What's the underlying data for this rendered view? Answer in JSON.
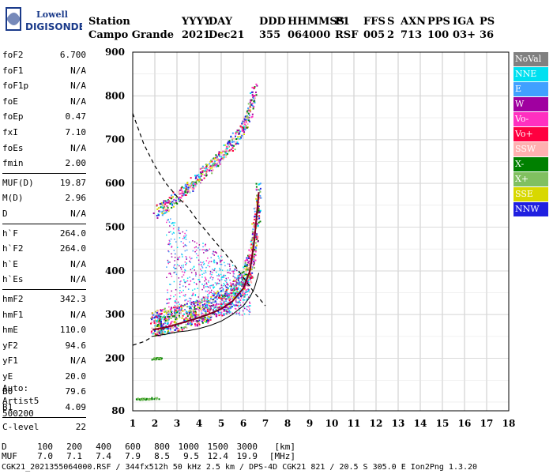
{
  "logo": {
    "line1": "Lowell",
    "line2": "DIGISONDE"
  },
  "header": {
    "columns": [
      {
        "label": "Station",
        "value": "Campo Grande",
        "w": 118
      },
      {
        "label": "YYYY",
        "value": "2021",
        "w": 34
      },
      {
        "label": "DAY",
        "value": "Dec21",
        "w": 64
      },
      {
        "label": "DDD",
        "value": "355",
        "w": 36
      },
      {
        "label": "HHMMSS",
        "value": "064000",
        "w": 60
      },
      {
        "label": "P1",
        "value": "RSF",
        "w": 36
      },
      {
        "label": "FFS",
        "value": "005",
        "w": 30
      },
      {
        "label": "S",
        "value": "2",
        "w": 17
      },
      {
        "label": "AXN",
        "value": "713",
        "w": 34
      },
      {
        "label": "PPS",
        "value": "100",
        "w": 32
      },
      {
        "label": "IGA",
        "value": "03+",
        "w": 34
      },
      {
        "label": "PS",
        "value": "36",
        "w": 24
      }
    ]
  },
  "params": [
    {
      "label": "foF2",
      "value": "6.700"
    },
    {
      "label": "foF1",
      "value": "N/A"
    },
    {
      "label": "foF1p",
      "value": "N/A"
    },
    {
      "label": "foE",
      "value": "N/A"
    },
    {
      "label": "foEp",
      "value": "0.47"
    },
    {
      "label": "fxI",
      "value": "7.10"
    },
    {
      "label": "foEs",
      "value": "N/A"
    },
    {
      "label": "fmin",
      "value": "2.00"
    },
    {
      "sep": true
    },
    {
      "label": "MUF(D)",
      "value": "19.87"
    },
    {
      "label": "M(D)",
      "value": "2.96"
    },
    {
      "label": "D",
      "value": "N/A"
    },
    {
      "sep": true
    },
    {
      "label": "h`F",
      "value": "264.0"
    },
    {
      "label": "h`F2",
      "value": "264.0"
    },
    {
      "label": "h`E",
      "value": "N/A"
    },
    {
      "label": "h`Es",
      "value": "N/A"
    },
    {
      "sep": true
    },
    {
      "label": "hmF2",
      "value": "342.3"
    },
    {
      "label": "hmF1",
      "value": "N/A"
    },
    {
      "label": "hmE",
      "value": "110.0"
    },
    {
      "label": "yF2",
      "value": "94.6"
    },
    {
      "label": "yF1",
      "value": "N/A"
    },
    {
      "label": "yE",
      "value": "20.0"
    },
    {
      "label": "B0",
      "value": "79.6"
    },
    {
      "label": "B1",
      "value": "4.09"
    },
    {
      "sep": true
    },
    {
      "label": "C-level",
      "value": "22"
    }
  ],
  "auto": [
    "Auto:",
    "Artist5",
    "500200"
  ],
  "legend": [
    {
      "label": "NoVal",
      "color": "#808080"
    },
    {
      "label": "NNE",
      "color": "#00e0f0"
    },
    {
      "label": "E",
      "color": "#40a0ff"
    },
    {
      "label": "W",
      "color": "#a000a0"
    },
    {
      "label": "Vo-",
      "color": "#ff30c0"
    },
    {
      "label": "Vo+",
      "color": "#ff0040"
    },
    {
      "label": "SSW",
      "color": "#ffb0b0"
    },
    {
      "label": "X-",
      "color": "#008000"
    },
    {
      "label": "X+",
      "color": "#80c060"
    },
    {
      "label": "SSE",
      "color": "#d8d800"
    },
    {
      "label": "NNW",
      "color": "#2020e0"
    }
  ],
  "bottom": {
    "d_label": "D",
    "d_values": [
      "100",
      "200",
      "400",
      "600",
      "800",
      "1000",
      "1500",
      "3000"
    ],
    "d_unit": "[km]",
    "muf_label": "MUF",
    "muf_values": [
      "7.0",
      "7.1",
      "7.4",
      "7.9",
      "8.5",
      "9.5",
      "12.4",
      "19.9"
    ],
    "muf_unit": "[MHz]",
    "footer": "CGK21_2021355064000.RSF / 344fx512h 50 kHz 2.5 km / DPS-4D CGK21 821 / 20.5 S 305.0 E Ion2Png 1.3.20"
  },
  "chart_data": {
    "type": "scatter",
    "xlim": [
      1,
      18
    ],
    "ylim": [
      80,
      900
    ],
    "xticks": [
      1,
      2,
      3,
      4,
      5,
      6,
      7,
      8,
      9,
      10,
      11,
      12,
      13,
      14,
      15,
      16,
      17,
      18
    ],
    "yticks": [
      80,
      200,
      300,
      400,
      500,
      600,
      700,
      800,
      900
    ],
    "grid": true,
    "legend_position": "right",
    "traces": [
      {
        "name": "F-trace",
        "x": [
          1.9,
          2.2,
          2.6,
          3.0,
          3.5,
          4.0,
          4.5,
          5.0,
          5.5,
          6.0,
          6.3,
          6.5,
          6.7
        ],
        "y": [
          265,
          268,
          272,
          278,
          285,
          293,
          302,
          313,
          330,
          360,
          400,
          470,
          580
        ]
      },
      {
        "name": "F-trace-2hop",
        "x": [
          2.0,
          2.5,
          3.0,
          3.5,
          4.0,
          4.5,
          5.0,
          5.5,
          6.0,
          6.3,
          6.5
        ],
        "y": [
          535,
          550,
          570,
          590,
          615,
          640,
          665,
          695,
          730,
          770,
          820
        ]
      },
      {
        "name": "Es-like",
        "x": [
          1.9,
          2.0,
          2.1,
          2.2
        ],
        "y": [
          200,
          201,
          200,
          202
        ]
      },
      {
        "name": "low-echo",
        "x": [
          1.2,
          1.5,
          1.8,
          2.1
        ],
        "y": [
          108,
          108,
          110,
          109
        ]
      }
    ],
    "profile": {
      "x": [
        1.85,
        2.5,
        3.0,
        3.5,
        4.0,
        4.5,
        5.0,
        5.5,
        6.0,
        6.3,
        6.5,
        6.7
      ],
      "y": [
        250,
        255,
        260,
        263,
        268,
        275,
        285,
        300,
        320,
        340,
        360,
        395
      ]
    },
    "muf_curve": {
      "x": [
        1.0,
        1.5,
        2.0,
        2.5,
        3.0,
        3.5,
        4.0,
        4.5,
        5.0,
        5.5,
        6.0,
        6.5,
        7.0
      ],
      "y": [
        760,
        690,
        640,
        600,
        570,
        545,
        510,
        480,
        450,
        420,
        385,
        350,
        320
      ]
    },
    "low_dashed": {
      "x": [
        1.0,
        1.5,
        1.85
      ],
      "y": [
        230,
        238,
        248
      ]
    }
  }
}
